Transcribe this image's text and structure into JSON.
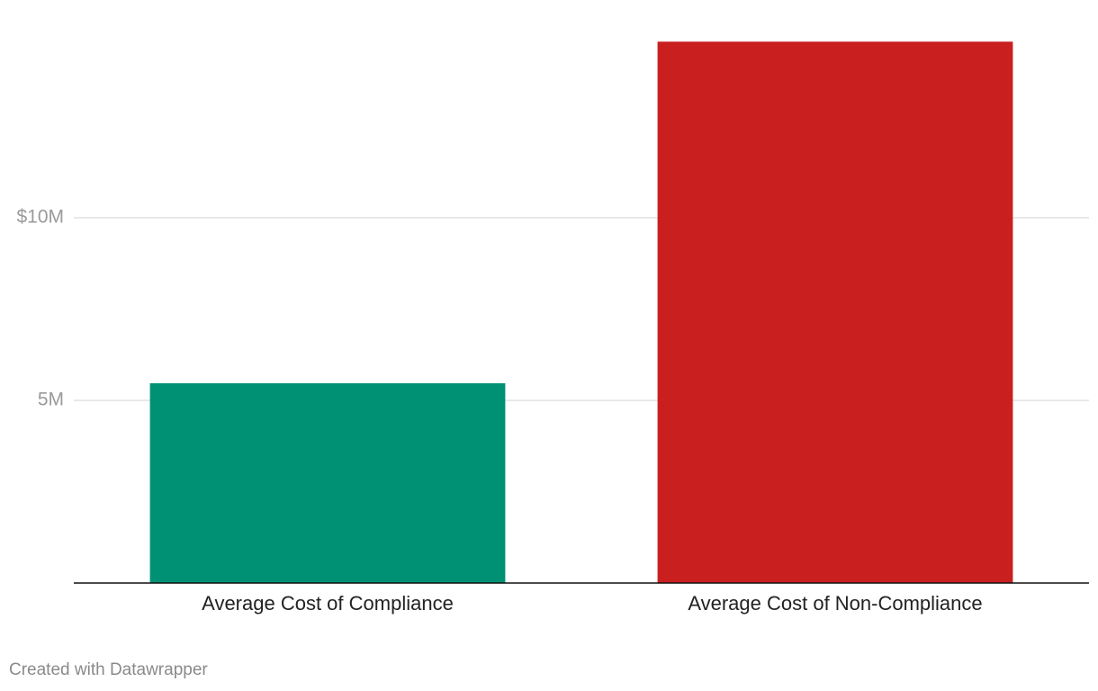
{
  "chart_data": {
    "type": "bar",
    "categories": [
      "Average Cost of Compliance",
      "Average Cost of Non-Compliance"
    ],
    "values": [
      5470000,
      14820000
    ],
    "colors": [
      "#009175",
      "#c91f1f"
    ],
    "ylim": [
      0,
      15000000
    ],
    "yticks": [
      {
        "value": 5000000,
        "label": "5M"
      },
      {
        "value": 10000000,
        "label": "$10M"
      }
    ],
    "grid": true,
    "footer": "Created with Datawrapper"
  }
}
